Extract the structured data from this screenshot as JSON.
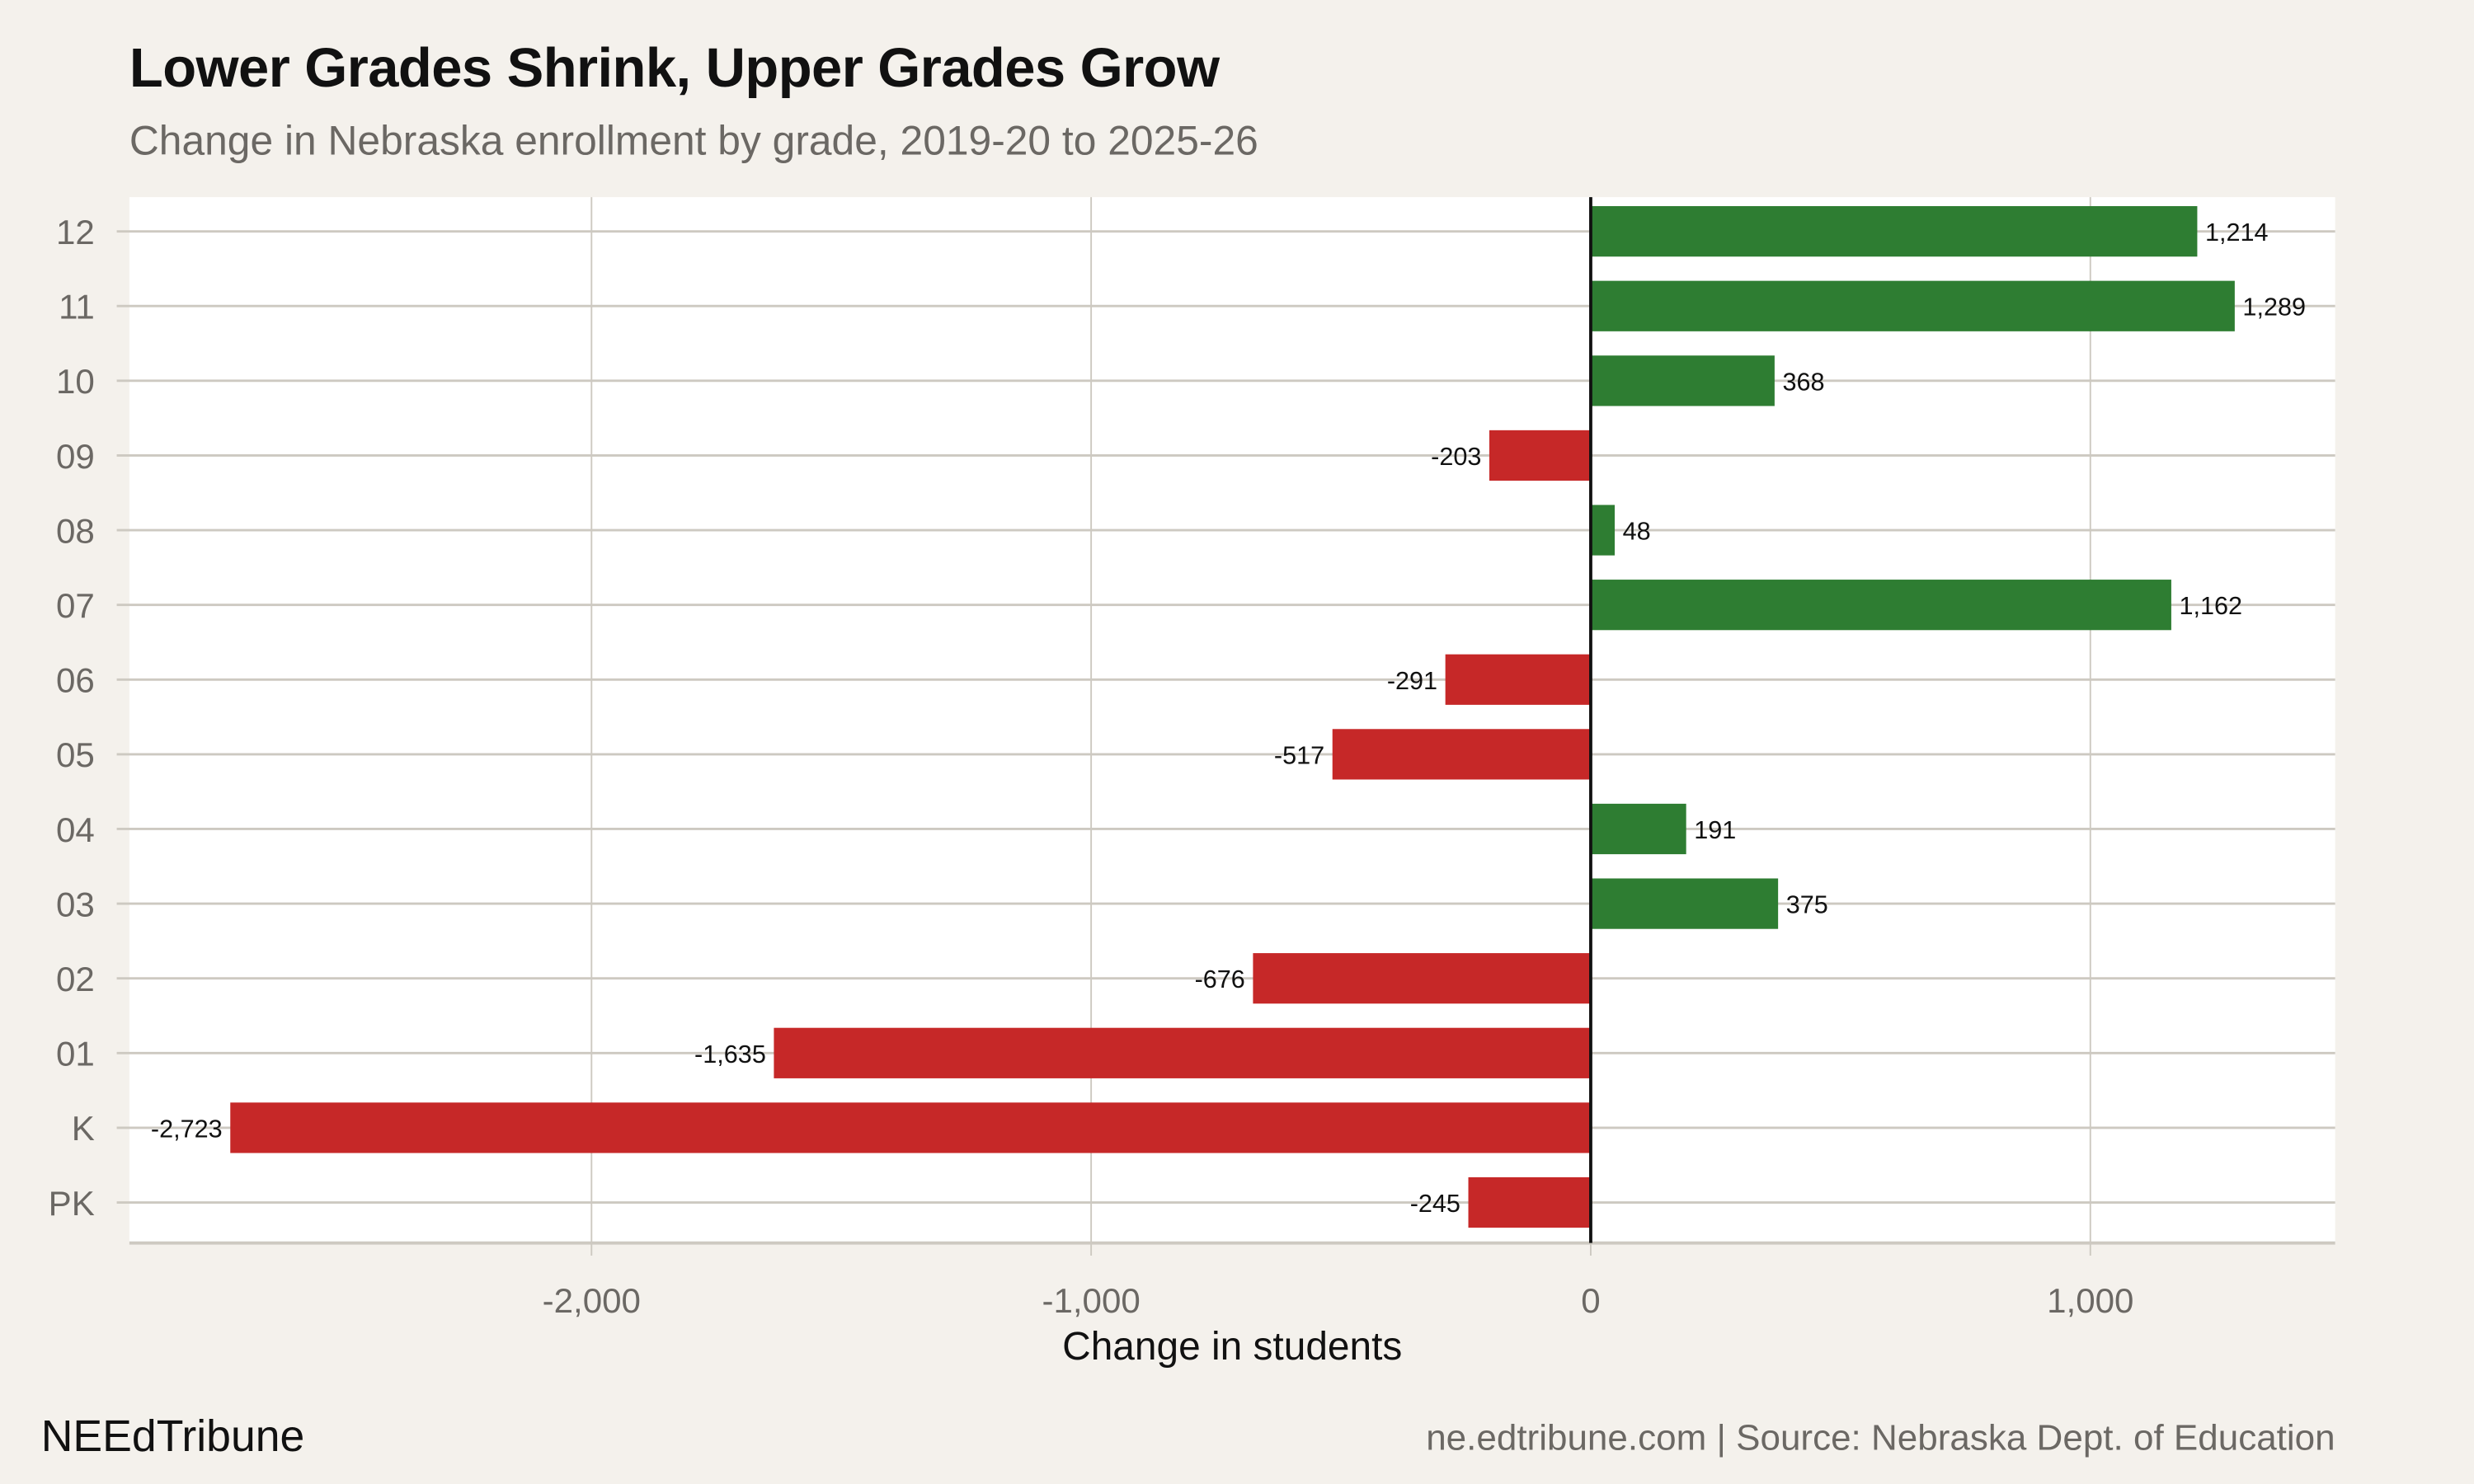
{
  "header": {
    "title": "Lower Grades Shrink, Upper Grades Grow",
    "subtitle": "Change in Nebraska enrollment by grade, 2019-20 to 2025-26"
  },
  "footer": {
    "brand": "NEEdTribune",
    "source": "ne.edtribune.com | Source: Nebraska Dept. of Education"
  },
  "chart_data": {
    "type": "bar",
    "orientation": "horizontal",
    "title": "Lower Grades Shrink, Upper Grades Grow",
    "subtitle": "Change in Nebraska enrollment by grade, 2019-20 to 2025-26",
    "xlabel": "Change in students",
    "ylabel": "",
    "categories": [
      "12",
      "11",
      "10",
      "09",
      "08",
      "07",
      "06",
      "05",
      "04",
      "03",
      "02",
      "01",
      "K",
      "PK"
    ],
    "values": [
      1214,
      1289,
      368,
      -203,
      48,
      1162,
      -291,
      -517,
      191,
      375,
      -676,
      -1635,
      -2723,
      -245
    ],
    "data_labels": [
      "1,214",
      "1,289",
      "368",
      "-203",
      "48",
      "1,162",
      "-291",
      "-517",
      "191",
      "375",
      "-676",
      "-1,635",
      "-2,723",
      "-245"
    ],
    "xlim": [
      -2925,
      1490
    ],
    "xticks": [
      -2000,
      -1000,
      0,
      1000
    ],
    "xtick_labels": [
      "-2,000",
      "-1,000",
      "0",
      "1,000"
    ],
    "grid": true,
    "legend": "none",
    "colors": {
      "positive": "#2e7d32",
      "negative": "#c62828",
      "background": "#f4f1ec",
      "panel": "#ffffff",
      "grid": "#cdc9c1"
    }
  }
}
